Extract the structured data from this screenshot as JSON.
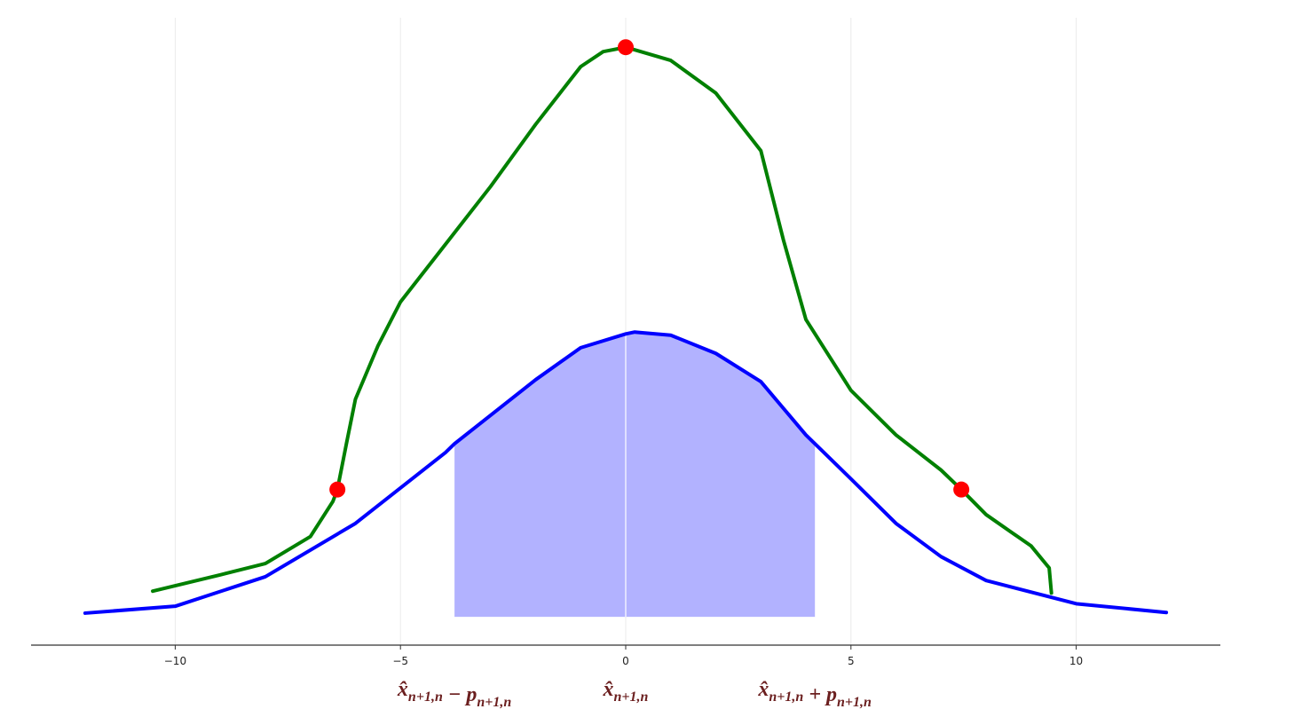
{
  "chart_data": {
    "type": "line",
    "xlim": [
      -13.2,
      13.2
    ],
    "ylim": [
      0,
      1
    ],
    "xticks": [
      {
        "value": -10,
        "label": "−10"
      },
      {
        "value": -5,
        "label": "−5"
      },
      0,
      5,
      10
    ],
    "grid": true,
    "series": [
      {
        "color": "#0000ff",
        "x": [
          -12,
          -10,
          -8,
          -6,
          -4,
          -3.8,
          -2,
          -1,
          0,
          0.2,
          1,
          2,
          3,
          4,
          4.2,
          5,
          6,
          7,
          8,
          10,
          12
        ],
        "values": [
          0.051,
          0.062,
          0.109,
          0.194,
          0.307,
          0.321,
          0.423,
          0.474,
          0.496,
          0.499,
          0.494,
          0.465,
          0.42,
          0.335,
          0.321,
          0.265,
          0.194,
          0.141,
          0.103,
          0.066,
          0.052
        ],
        "fill": {
          "color": "#b2b2ff",
          "from": -3.8,
          "to": 4.2,
          "base": 0.045,
          "divider": 0
        }
      },
      {
        "color": "#008000",
        "x": [
          -10.5,
          -9,
          -8,
          -7,
          -6.5,
          -6.4,
          -6.2,
          -6,
          -5.5,
          -5,
          -4,
          -3,
          -2,
          -1,
          -0.5,
          0,
          1,
          2,
          3,
          3.5,
          4,
          5,
          6,
          7,
          7.45,
          8,
          9,
          9.4,
          9.45
        ],
        "values": [
          0.086,
          0.112,
          0.13,
          0.173,
          0.229,
          0.248,
          0.321,
          0.392,
          0.477,
          0.547,
          0.639,
          0.731,
          0.83,
          0.922,
          0.946,
          0.953,
          0.932,
          0.88,
          0.788,
          0.646,
          0.519,
          0.406,
          0.335,
          0.279,
          0.248,
          0.208,
          0.158,
          0.123,
          0.083
        ]
      }
    ],
    "points": {
      "color": "#ff0000",
      "x": [
        -6.4,
        0,
        7.45
      ],
      "values": [
        0.248,
        0.953,
        0.248
      ]
    },
    "annotations": [
      {
        "x": -3.8,
        "parts": [
          {
            "text": "x̂",
            "sub": "n+1,n"
          },
          {
            "text": " − p",
            "sub": "n+1,n"
          }
        ]
      },
      {
        "x": 0,
        "parts": [
          {
            "text": "x̂",
            "sub": "n+1,n"
          }
        ]
      },
      {
        "x": 4.2,
        "parts": [
          {
            "text": "x̂",
            "sub": "n+1,n"
          },
          {
            "text": " + p",
            "sub": "n+1,n"
          }
        ]
      }
    ]
  }
}
